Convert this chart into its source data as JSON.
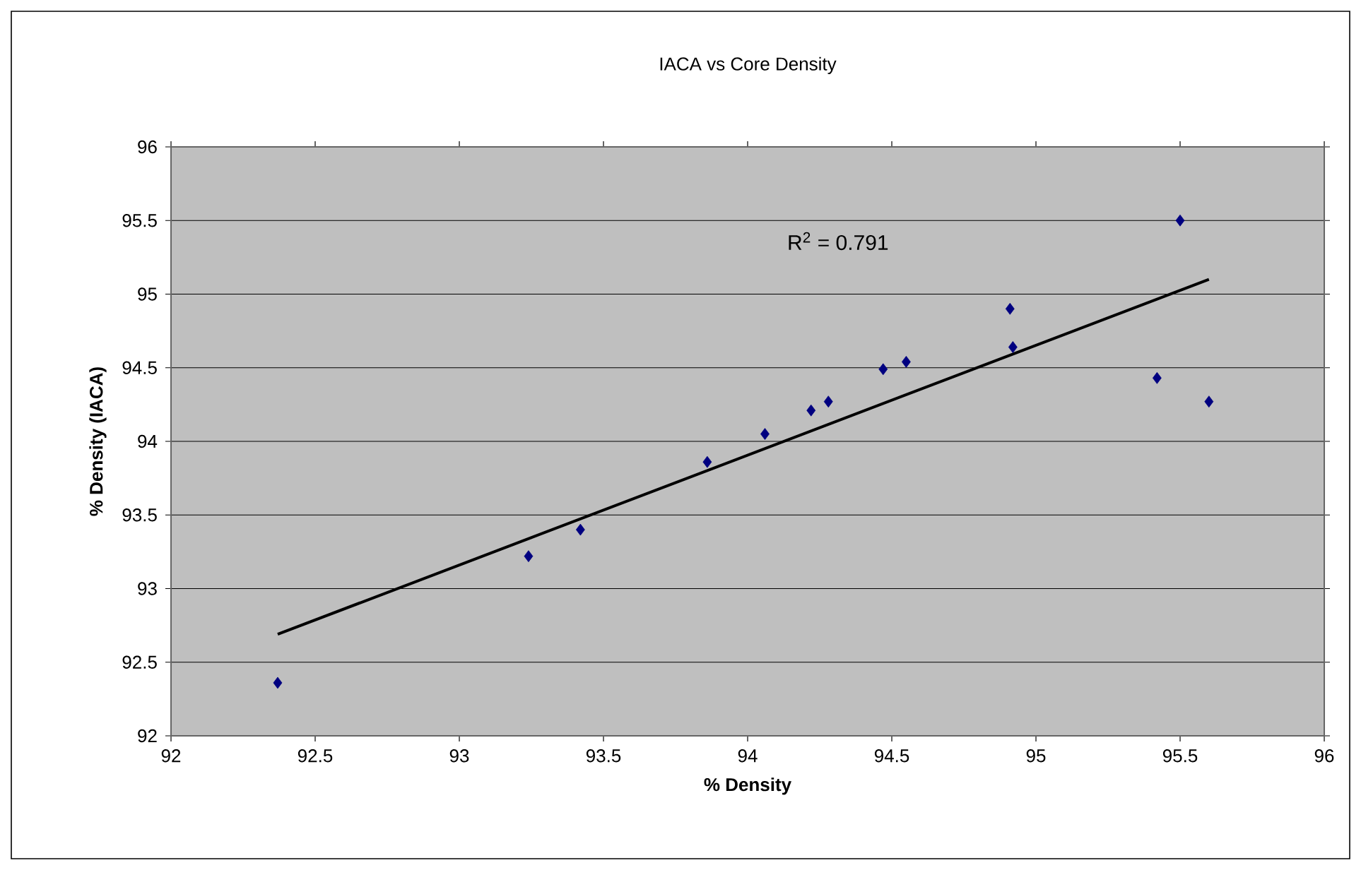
{
  "chart_data": {
    "type": "scatter",
    "title": "IACA vs Core Density",
    "xlabel": "% Density",
    "ylabel": "% Density (IACA)",
    "xlim": [
      92,
      96
    ],
    "xticks": [
      92,
      92.5,
      93,
      93.5,
      94,
      94.5,
      95,
      95.5,
      96
    ],
    "ylim": [
      92,
      96
    ],
    "yticks": [
      92,
      92.5,
      93,
      93.5,
      94,
      94.5,
      95,
      95.5,
      96
    ],
    "grid": "y",
    "series": [
      {
        "marker": "diamond",
        "color": "#000080",
        "x": [
          92.37,
          93.24,
          93.42,
          93.86,
          94.06,
          94.22,
          94.28,
          94.47,
          94.55,
          94.91,
          94.92,
          95.42,
          95.5,
          95.6
        ],
        "values": [
          92.36,
          93.22,
          93.4,
          93.86,
          94.05,
          94.21,
          94.27,
          94.49,
          94.54,
          94.9,
          94.64,
          94.43,
          95.5,
          94.27
        ]
      },
      {
        "type": "line",
        "color": "#000000",
        "x": [
          92.37,
          95.6
        ],
        "values": [
          92.69,
          95.1
        ]
      }
    ],
    "annotations": [
      "R$^{2}$ = 0.791"
    ]
  }
}
